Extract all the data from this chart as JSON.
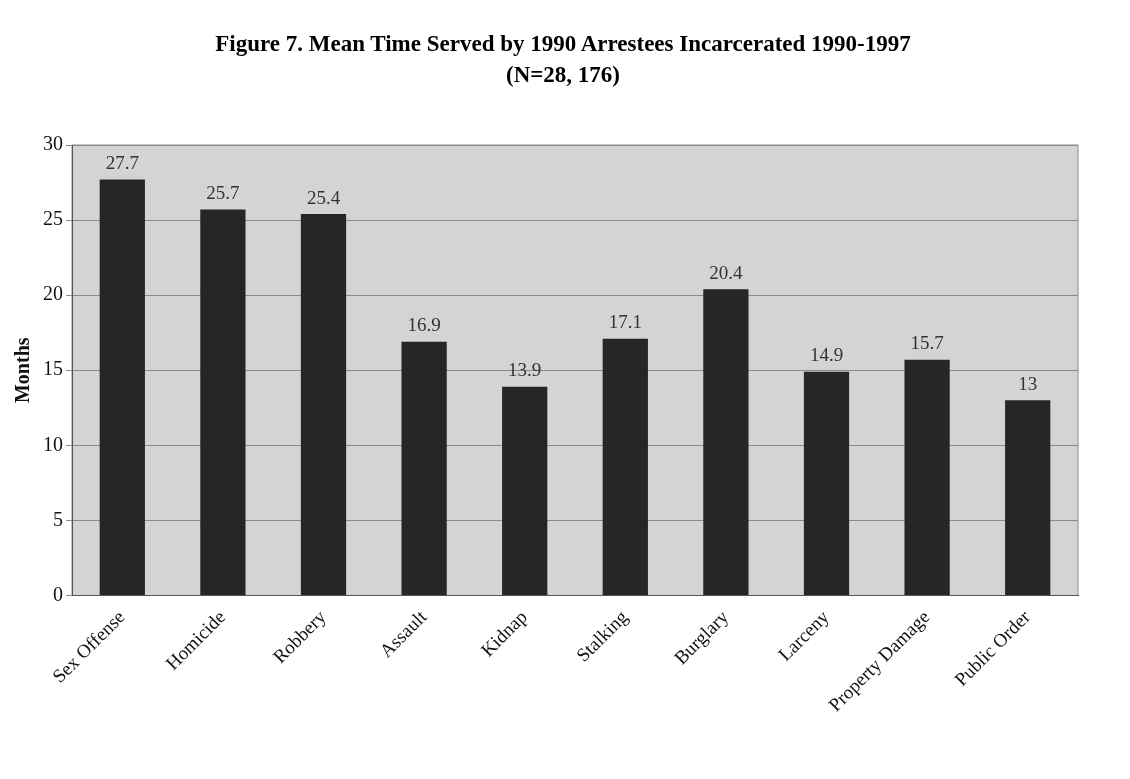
{
  "chart_data": {
    "type": "bar",
    "title": "Figure 7.  Mean Time Served by 1990 Arrestees Incarcerated 1990-1997 (N=28, 176)",
    "ylabel": "Months",
    "categories": [
      "Sex Offense",
      "Homicide",
      "Robbery",
      "Assault",
      "Kidnap",
      "Stalking",
      "Burglary",
      "Larceny",
      "Property Damage",
      "Public Order"
    ],
    "values": [
      27.7,
      25.7,
      25.4,
      16.9,
      13.9,
      17.1,
      20.4,
      14.9,
      15.7,
      13
    ],
    "color": "#262626",
    "ylim": [
      0,
      30
    ],
    "yticks": [
      0,
      5,
      10,
      15,
      20,
      25,
      30
    ],
    "grid": "y",
    "data_labels": true,
    "legend": false
  }
}
